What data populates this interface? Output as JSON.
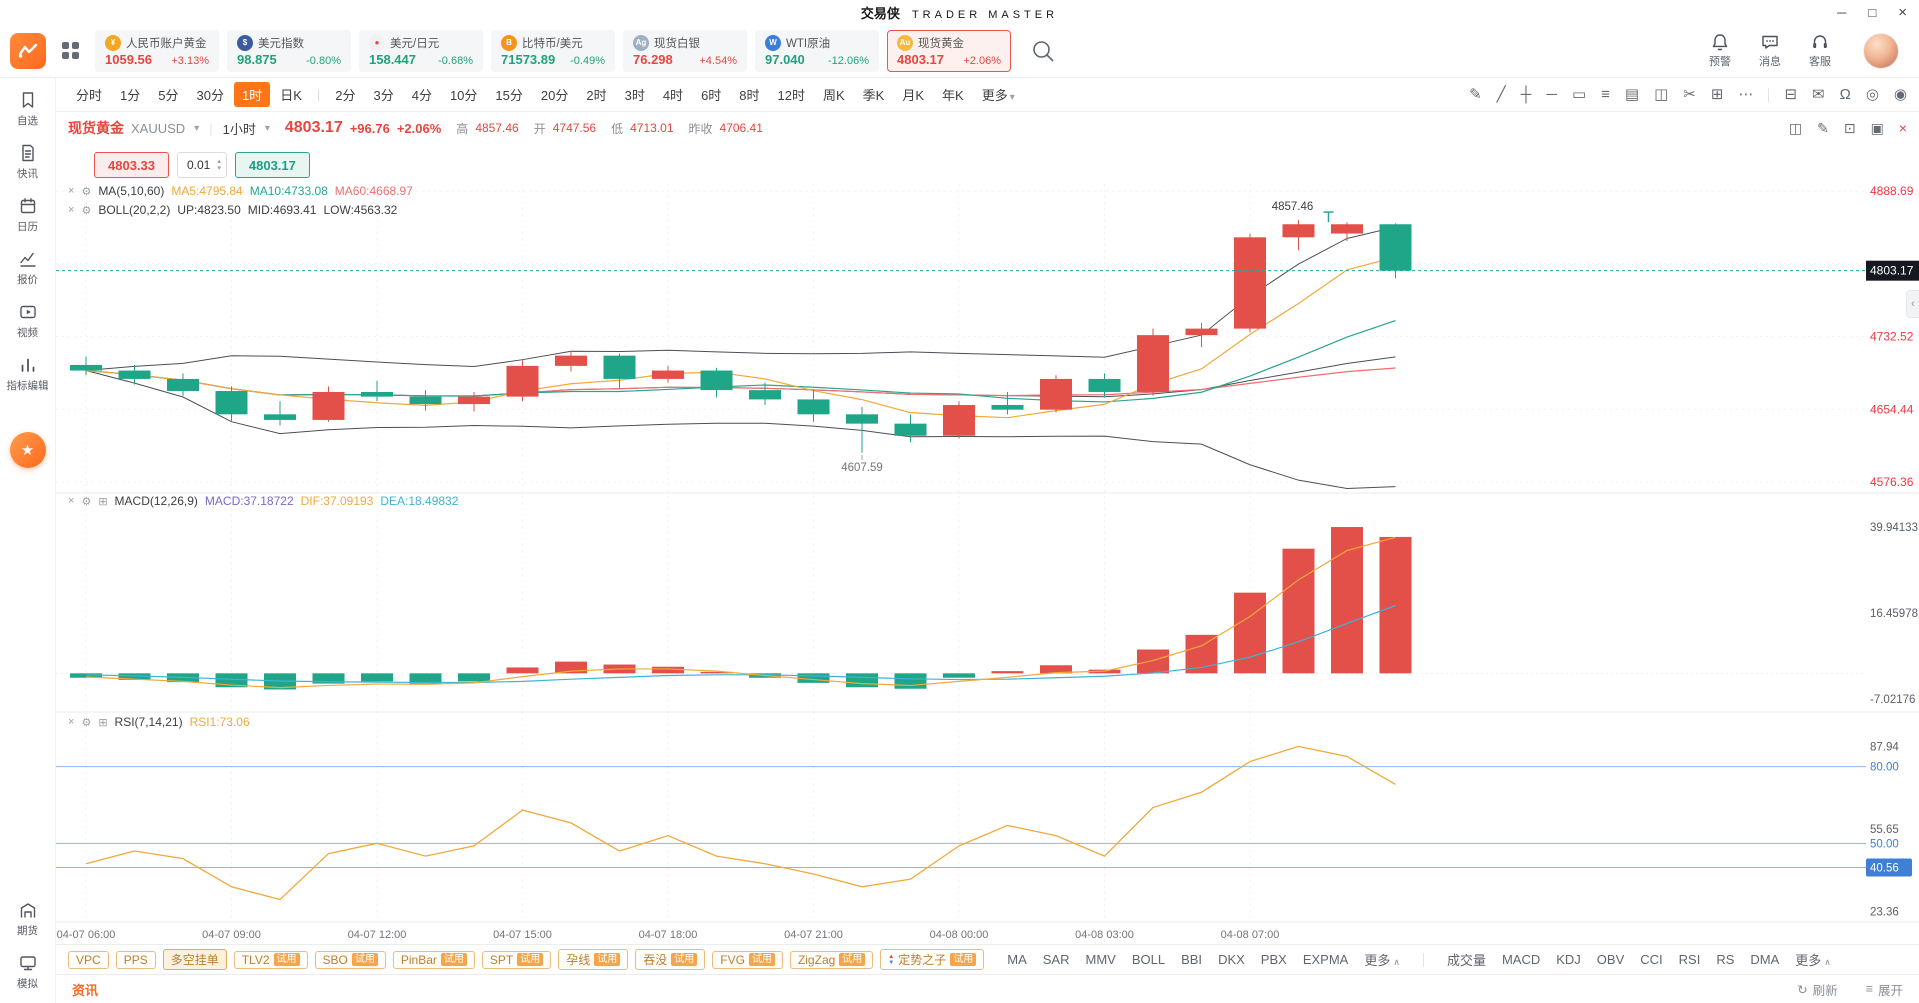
{
  "colors": {
    "up": "#e8453f",
    "down": "#21a17c"
  },
  "icons": {
    "minimize": "─",
    "maximize": "□",
    "close": "×",
    "chevron_down": "▾",
    "caret_up": "∧",
    "divider": "|",
    "stepper_up": "▴",
    "stepper_down": "▾",
    "settings": "⚙",
    "close_small": "×",
    "expand_pane": "⊞",
    "collapse": "‹",
    "refresh": "↻",
    "expand_panel": "≡",
    "promo_star": "★"
  },
  "window": {
    "title_cn": "交易侠",
    "title_en": "TRADER MASTER"
  },
  "header": {
    "quotes": [
      {
        "name": "人民币账户黄金",
        "price": "1059.56",
        "change": "+3.13%",
        "dir": "up",
        "icon": {
          "name": "cny-gold-icon",
          "glyph": "¥",
          "bg": "#f5a623"
        }
      },
      {
        "name": "美元指数",
        "price": "98.875",
        "change": "-0.80%",
        "dir": "down",
        "icon": {
          "name": "usd-index-icon",
          "glyph": "$",
          "bg": "#3c5ba0"
        }
      },
      {
        "name": "美元/日元",
        "price": "158.447",
        "change": "-0.68%",
        "dir": "down",
        "icon": {
          "name": "usd-jpy-icon",
          "glyph": "●",
          "bg": "#f1f1f1",
          "fg": "#e8453f"
        }
      },
      {
        "name": "比特币/美元",
        "price": "71573.89",
        "change": "-0.49%",
        "dir": "down",
        "icon": {
          "name": "btc-usd-icon",
          "glyph": "B",
          "bg": "#f7931a"
        }
      },
      {
        "name": "现货白银",
        "price": "76.298",
        "change": "+4.54%",
        "dir": "up",
        "icon": {
          "name": "silver-icon",
          "glyph": "Ag",
          "bg": "#9fb0c4"
        }
      },
      {
        "name": "WTI原油",
        "price": "97.040",
        "change": "-12.06%",
        "dir": "down",
        "icon": {
          "name": "wti-oil-icon",
          "glyph": "W",
          "bg": "#3d7edb"
        }
      },
      {
        "name": "现货黄金",
        "price": "4803.17",
        "change": "+2.06%",
        "dir": "up",
        "selected": true,
        "icon": {
          "name": "gold-icon",
          "glyph": "Au",
          "bg": "#f6b93f"
        }
      }
    ],
    "actions": [
      {
        "id": "alert",
        "label": "预警"
      },
      {
        "id": "message",
        "label": "消息"
      },
      {
        "id": "service",
        "label": "客服"
      }
    ]
  },
  "toolbar": {
    "timeframes": [
      "分时",
      "1分",
      "5分",
      "30分",
      "1时",
      "日K",
      "2分",
      "3分",
      "4分",
      "10分",
      "15分",
      "20分",
      "2时",
      "3时",
      "4时",
      "6时",
      "8时",
      "12时",
      "周K",
      "季K",
      "月K",
      "年K"
    ],
    "active": "1时",
    "more_label": "更多",
    "divider_after_index": 5,
    "tools": [
      {
        "name": "pencil-tool-icon",
        "glyph": "✎"
      },
      {
        "name": "trend-line-tool-icon",
        "glyph": "╱"
      },
      {
        "name": "cross-line-tool-icon",
        "glyph": "┼"
      },
      {
        "name": "horizontal-line-tool-icon",
        "glyph": "─"
      },
      {
        "name": "rect-tool-icon",
        "glyph": "▭"
      },
      {
        "name": "fib-tool-icon",
        "glyph": "≡"
      },
      {
        "name": "pattern-tool-icon",
        "glyph": "▤"
      },
      {
        "name": "layout-tool-icon",
        "glyph": "◫"
      },
      {
        "name": "eraser-tool-icon",
        "glyph": "✂"
      },
      {
        "name": "add-pane-tool-icon",
        "glyph": "⊞"
      },
      {
        "name": "more-tools-icon",
        "glyph": "⋯"
      },
      {
        "divider": true
      },
      {
        "name": "save-layout-icon",
        "glyph": "⊟"
      },
      {
        "name": "note-tool-icon",
        "glyph": "✉"
      },
      {
        "name": "magnet-tool-icon",
        "glyph": "Ω"
      },
      {
        "name": "target-tool-icon",
        "glyph": "◎"
      },
      {
        "name": "visibility-tool-icon",
        "glyph": "◉"
      }
    ]
  },
  "symbol_bar": {
    "name": "现货黄金",
    "code": "XAUUSD",
    "interval": "1小时",
    "price": "4803.17",
    "change": "+96.76",
    "change_pct": "+2.06%",
    "stats": [
      {
        "label": "高",
        "value": "4857.46"
      },
      {
        "label": "开",
        "value": "4747.56"
      },
      {
        "label": "低",
        "value": "4713.01"
      },
      {
        "label": "昨收",
        "value": "4706.41"
      }
    ],
    "icons": [
      {
        "name": "chart-style-icon",
        "glyph": "◫"
      },
      {
        "name": "edit-chart-icon",
        "glyph": "✎"
      },
      {
        "name": "indicator-pane-icon",
        "glyph": "⊡"
      },
      {
        "name": "fullscreen-icon",
        "glyph": "▣"
      },
      {
        "name": "close-chart-icon",
        "glyph": "×",
        "color": "#e8453f"
      }
    ]
  },
  "order": {
    "sell": "4803.33",
    "qty": "0.01",
    "buy": "4803.17"
  },
  "indicators": {
    "ma": {
      "title": "MA(5,10,60)",
      "items": [
        {
          "label": "MA5:4795.84",
          "color": "#f0a93b"
        },
        {
          "label": "MA10:4733.08",
          "color": "#2aa491"
        },
        {
          "label": "MA60:4668.97",
          "color": "#ef6e6e"
        }
      ]
    },
    "boll": {
      "title": "BOLL(20,2,2)",
      "items": [
        {
          "label": "UP:4823.50"
        },
        {
          "label": "MID:4693.41"
        },
        {
          "label": "LOW:4563.32"
        }
      ]
    },
    "macd": {
      "title": "MACD(12,26,9)",
      "items": [
        {
          "label": "MACD:37.18722",
          "color": "#7b68c8"
        },
        {
          "label": "DIF:37.09193",
          "color": "#f0a93b"
        },
        {
          "label": "DEA:18.49832",
          "color": "#3fb3d6"
        }
      ]
    },
    "rsi": {
      "title": "RSI(7,14,21)",
      "items": [
        {
          "label": "RSI1:73.06",
          "color": "#f0a93b"
        }
      ]
    }
  },
  "chart_data": {
    "type": "candlestick",
    "symbol": "XAUUSD",
    "interval": "1小时",
    "price_gridlines": [
      4888.69,
      4810.61,
      4732.52,
      4654.44,
      4576.36
    ],
    "y_axis_labels": [
      {
        "v": 4888.69,
        "text": "4888.69"
      },
      {
        "v": 4732.52,
        "text": "4732.52"
      },
      {
        "v": 4654.44,
        "text": "4654.44"
      },
      {
        "v": 4576.36,
        "text": "4576.36"
      }
    ],
    "current_price": 4803.17,
    "current_price_label": "4803.17",
    "high_annotation": {
      "index": 25,
      "text": "4857.46"
    },
    "low_annotation": {
      "index": 16,
      "text": "4607.59"
    },
    "x_labels": [
      {
        "index": 0,
        "text": "04-07 06:00"
      },
      {
        "index": 3,
        "text": "04-07 09:00"
      },
      {
        "index": 6,
        "text": "04-07 12:00"
      },
      {
        "index": 9,
        "text": "04-07 15:00"
      },
      {
        "index": 12,
        "text": "04-07 18:00"
      },
      {
        "index": 15,
        "text": "04-07 21:00"
      },
      {
        "index": 18,
        "text": "04-08 00:00"
      },
      {
        "index": 21,
        "text": "04-08 03:00"
      },
      {
        "index": 24,
        "text": "04-08 07:00"
      }
    ],
    "candles": [
      [
        4702,
        4711,
        4691,
        4696
      ],
      [
        4696,
        4702,
        4681,
        4687
      ],
      [
        4687,
        4693,
        4669,
        4674
      ],
      [
        4674,
        4679,
        4641,
        4649
      ],
      [
        4649,
        4663,
        4637,
        4643
      ],
      [
        4643,
        4679,
        4641,
        4673
      ],
      [
        4673,
        4685,
        4663,
        4668
      ],
      [
        4668,
        4675,
        4653,
        4660
      ],
      [
        4660,
        4673,
        4652,
        4668
      ],
      [
        4668,
        4707,
        4663,
        4701
      ],
      [
        4701,
        4717,
        4695,
        4712
      ],
      [
        4712,
        4714,
        4677,
        4687
      ],
      [
        4687,
        4701,
        4683,
        4696
      ],
      [
        4696,
        4699,
        4667,
        4675
      ],
      [
        4675,
        4683,
        4659,
        4665
      ],
      [
        4665,
        4675,
        4641,
        4649
      ],
      [
        4649,
        4657,
        4607.59,
        4639
      ],
      [
        4639,
        4649,
        4619,
        4626
      ],
      [
        4626,
        4663,
        4623,
        4659
      ],
      [
        4659,
        4673,
        4649,
        4654
      ],
      [
        4654,
        4691,
        4651,
        4687
      ],
      [
        4687,
        4693,
        4667,
        4673
      ],
      [
        4673,
        4741,
        4669,
        4734
      ],
      [
        4734,
        4747,
        4721,
        4741
      ],
      [
        4741,
        4843,
        4737,
        4839
      ],
      [
        4839,
        4857.46,
        4825,
        4853
      ],
      [
        4843,
        4855,
        4835,
        4853
      ],
      [
        4853,
        4854,
        4795,
        4803.17
      ]
    ],
    "overlays": {
      "ma_periods": [
        5,
        10,
        60
      ],
      "boll": {
        "period": 20,
        "k": 2
      }
    },
    "colors": {
      "up": "#e3504a",
      "down": "#1fa689",
      "ma5": "#f0a93b",
      "ma10": "#2aa491",
      "ma60": "#ef6e6e",
      "boll": "#4a4f56",
      "dif": "#f0a93b",
      "dea": "#3fb3d6",
      "rsi": "#f0a93b",
      "axis_red": "#f23645",
      "axis_blue": "#3f7fd6",
      "grid": "#f1f2f4",
      "current": "#26a69a"
    },
    "macd": {
      "params": "(12,26,9)",
      "axis_labels": [
        {
          "v": 39.94133,
          "text": "39.94133"
        },
        {
          "v": 16.45978,
          "text": "16.45978"
        },
        {
          "v": -7.02176,
          "text": "-7.02176"
        }
      ],
      "hist": [
        -1.2,
        -1.8,
        -2.4,
        -3.8,
        -4.4,
        -2.8,
        -2.2,
        -2.8,
        -2.2,
        1.6,
        3.2,
        2.4,
        1.8,
        0.4,
        -1.2,
        -2.6,
        -3.8,
        -4.2,
        -1.2,
        0.6,
        2.2,
        1.0,
        6.5,
        10.5,
        22,
        34,
        39.9,
        37.2
      ],
      "dif": [
        -1.0,
        -1.6,
        -2.2,
        -3.2,
        -3.9,
        -3.3,
        -2.9,
        -3.0,
        -2.6,
        -0.9,
        0.6,
        1.2,
        1.2,
        0.6,
        -0.6,
        -1.7,
        -2.8,
        -3.3,
        -2.2,
        -1.1,
        0.2,
        0.6,
        3.5,
        7.5,
        15.5,
        25.5,
        33.5,
        37.09
      ],
      "dea": [
        -0.4,
        -0.7,
        -1.1,
        -1.6,
        -2.1,
        -2.3,
        -2.4,
        -2.5,
        -2.5,
        -2.2,
        -1.6,
        -1.1,
        -0.6,
        -0.4,
        -0.4,
        -0.7,
        -1.1,
        -1.5,
        -1.7,
        -1.6,
        -1.2,
        -0.8,
        0.1,
        1.6,
        4.4,
        8.6,
        13.6,
        18.5
      ]
    },
    "rsi": {
      "params": "(7,14,21)",
      "lines": [
        80,
        50,
        40.56
      ],
      "axis_labels": [
        {
          "v": 87.94,
          "text": "87.94"
        },
        {
          "v": 80,
          "text": "80.00",
          "blue": true
        },
        {
          "v": 55.65,
          "text": "55.65"
        },
        {
          "v": 50,
          "text": "50.00",
          "blue": true
        },
        {
          "v": 40.56,
          "text": "40.56",
          "badge": true
        },
        {
          "v": 23.36,
          "text": "23.36"
        }
      ],
      "values": [
        42,
        47,
        44,
        33,
        28,
        46,
        50,
        45,
        49,
        63,
        58,
        47,
        53,
        45,
        42,
        38,
        33,
        36,
        49,
        57,
        53,
        45,
        64,
        70,
        82,
        87.94,
        84,
        73.06
      ]
    }
  },
  "bottom_bar": {
    "trial_label": "试用",
    "more_label": "更多",
    "chips": [
      {
        "label": "VPC"
      },
      {
        "label": "PPS"
      },
      {
        "label": "多空挂单",
        "active": true
      },
      {
        "label": "TLV2",
        "trial": true
      },
      {
        "label": "SBO",
        "trial": true
      },
      {
        "label": "PinBar",
        "trial": true
      },
      {
        "label": "SPT",
        "trial": true
      },
      {
        "label": "孕线",
        "trial": true
      },
      {
        "label": "吞没",
        "trial": true
      },
      {
        "label": "FVG",
        "trial": true
      },
      {
        "label": "ZigZag",
        "trial": true
      },
      {
        "label": "定势之子",
        "trial": true,
        "logo": true
      }
    ],
    "plain": [
      "MA",
      "SAR",
      "MMV",
      "BOLL",
      "BBI",
      "DKX",
      "PBX",
      "EXPMA",
      "更多"
    ],
    "plain2": [
      "成交量",
      "MACD",
      "KDJ",
      "OBV",
      "CCI",
      "RSI",
      "RS",
      "DMA",
      "更多"
    ]
  },
  "status_bar": {
    "news_tab": "资讯",
    "refresh": "刷新",
    "expand": "展开"
  },
  "sidebar": {
    "items": [
      {
        "id": "favorites",
        "label": "自选"
      },
      {
        "id": "news",
        "label": "快讯"
      },
      {
        "id": "calendar",
        "label": "日历"
      },
      {
        "id": "quotes",
        "label": "报价"
      },
      {
        "id": "video",
        "label": "视频"
      },
      {
        "id": "editor",
        "label": "指标编辑"
      }
    ],
    "bottom": [
      {
        "id": "futures",
        "label": "期货"
      },
      {
        "id": "sim",
        "label": "模拟"
      }
    ]
  }
}
